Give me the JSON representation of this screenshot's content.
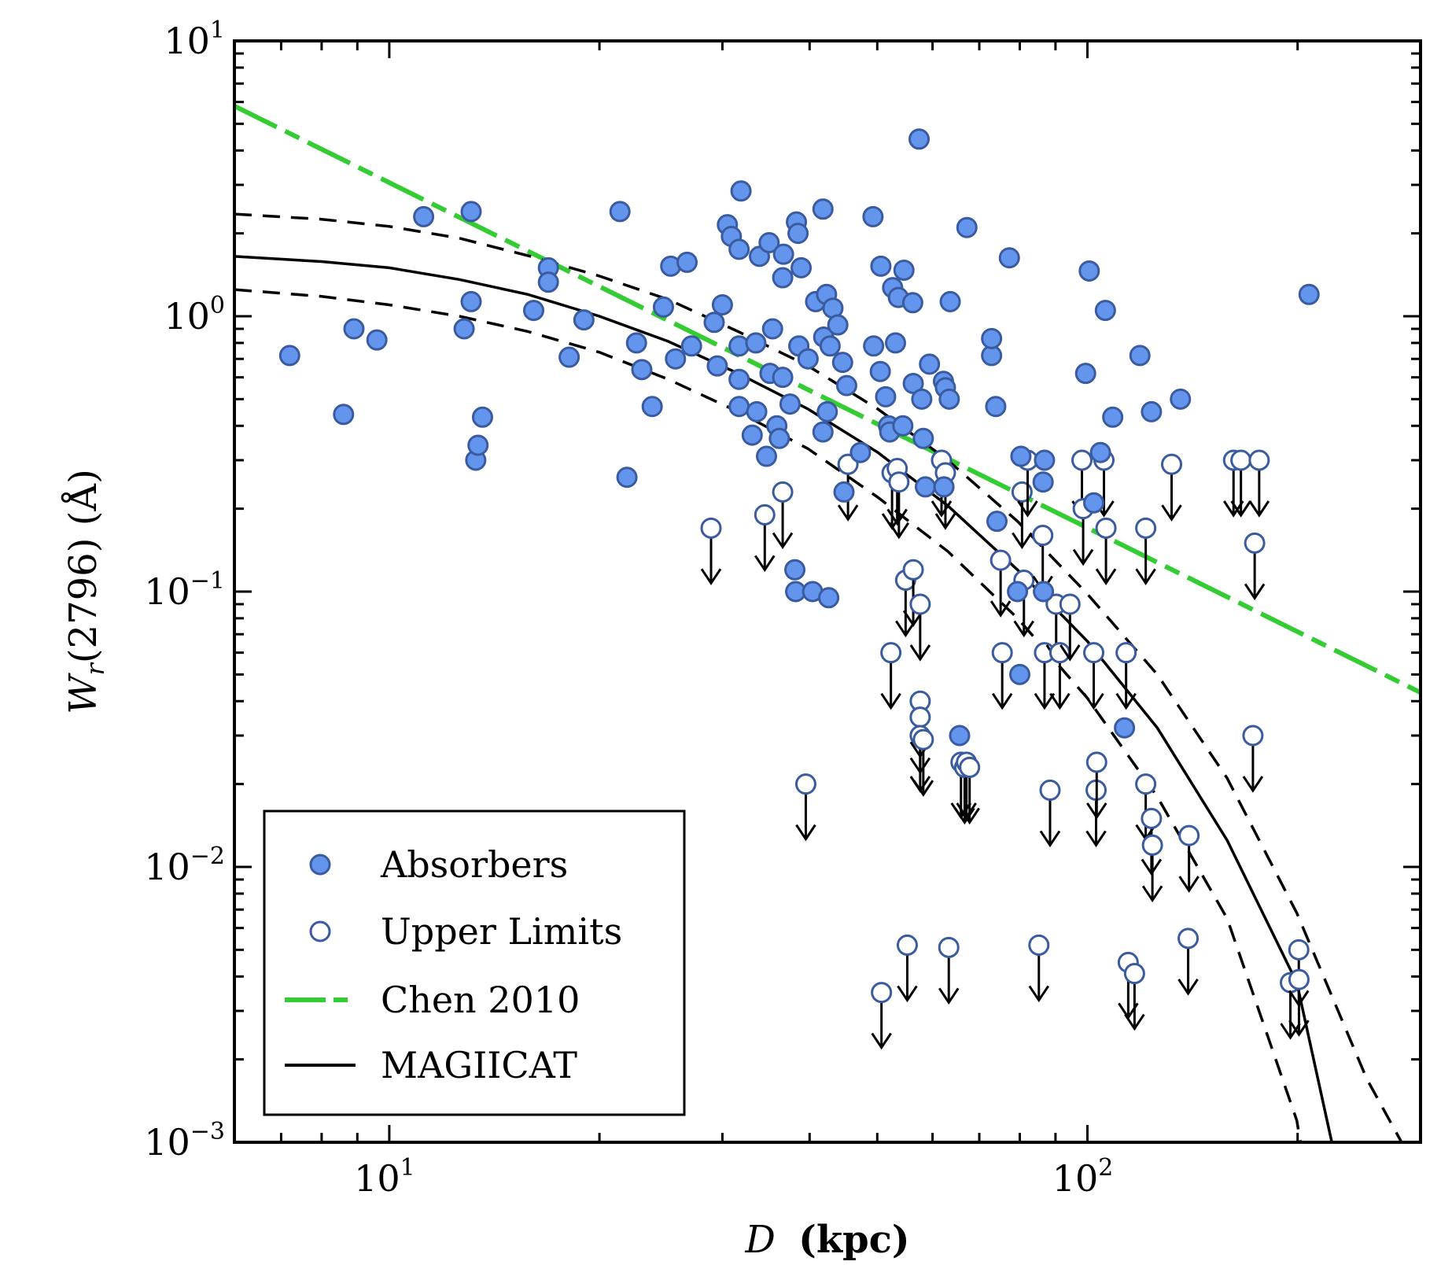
{
  "chart_data": {
    "type": "scatter",
    "xscale": "log",
    "yscale": "log",
    "xlim": [
      6,
      300
    ],
    "ylim": [
      0.001,
      10
    ],
    "xlabel": {
      "var": "D",
      "unit": "(kpc)"
    },
    "ylabel": {
      "var": "W",
      "sub": "r",
      "rest": "(2796) (Å)"
    },
    "x_ticks": [
      {
        "value": 10,
        "base": "10",
        "exp": "1"
      },
      {
        "value": 100,
        "base": "10",
        "exp": "2"
      }
    ],
    "y_ticks": [
      {
        "value": 10,
        "base": "10",
        "exp": "1"
      },
      {
        "value": 1,
        "base": "10",
        "exp": "0"
      },
      {
        "value": 0.1,
        "base": "10",
        "exp": "−1"
      },
      {
        "value": 0.01,
        "base": "10",
        "exp": "−2"
      },
      {
        "value": 0.001,
        "base": "10",
        "exp": "−3"
      }
    ],
    "legend": {
      "position": "lower-left",
      "entries": [
        "Absorbers",
        "Upper Limits",
        "Chen 2010",
        "MAGIICAT"
      ]
    },
    "colors": {
      "absorber_fill": "#6495ED",
      "marker_edge": "#3A5BA0",
      "chen_line": "#33CC33",
      "fit_line": "#000000"
    },
    "series": [
      {
        "name": "Absorbers",
        "kind": "filled-circle",
        "points": [
          [
            7.2,
            0.72
          ],
          [
            8.6,
            0.44
          ],
          [
            8.9,
            0.9
          ],
          [
            9.6,
            0.82
          ],
          [
            11.2,
            2.3
          ],
          [
            12.8,
            0.9
          ],
          [
            13.1,
            2.4
          ],
          [
            13.1,
            1.13
          ],
          [
            13.3,
            0.3
          ],
          [
            13.4,
            0.34
          ],
          [
            13.6,
            0.43
          ],
          [
            16.1,
            1.05
          ],
          [
            16.9,
            1.5
          ],
          [
            16.9,
            1.33
          ],
          [
            18.1,
            0.71
          ],
          [
            19.0,
            0.97
          ],
          [
            21.4,
            2.4
          ],
          [
            21.9,
            0.26
          ],
          [
            22.6,
            0.8
          ],
          [
            23.0,
            0.64
          ],
          [
            23.8,
            0.47
          ],
          [
            24.7,
            1.08
          ],
          [
            25.3,
            1.52
          ],
          [
            25.7,
            0.7
          ],
          [
            26.7,
            1.57
          ],
          [
            27.1,
            0.78
          ],
          [
            29.2,
            0.95
          ],
          [
            29.5,
            0.66
          ],
          [
            30.0,
            1.1
          ],
          [
            30.5,
            2.15
          ],
          [
            30.9,
            1.95
          ],
          [
            31.7,
            1.75
          ],
          [
            31.7,
            0.47
          ],
          [
            31.7,
            0.78
          ],
          [
            31.7,
            0.59
          ],
          [
            31.9,
            2.85
          ],
          [
            33.1,
            0.37
          ],
          [
            33.5,
            0.8
          ],
          [
            33.6,
            0.45
          ],
          [
            33.9,
            1.65
          ],
          [
            34.7,
            0.31
          ],
          [
            35.0,
            1.85
          ],
          [
            35.1,
            0.62
          ],
          [
            35.4,
            0.9
          ],
          [
            35.9,
            0.4
          ],
          [
            36.2,
            0.36
          ],
          [
            36.6,
            1.38
          ],
          [
            36.6,
            0.6
          ],
          [
            36.7,
            1.68
          ],
          [
            37.5,
            0.48
          ],
          [
            38.1,
            0.12
          ],
          [
            38.2,
            0.1
          ],
          [
            38.3,
            2.2
          ],
          [
            38.5,
            2.0
          ],
          [
            38.6,
            0.78
          ],
          [
            38.9,
            1.5
          ],
          [
            39.8,
            0.7
          ],
          [
            40.4,
            0.1
          ],
          [
            40.8,
            1.13
          ],
          [
            41.8,
            0.38
          ],
          [
            41.8,
            2.45
          ],
          [
            41.9,
            0.84
          ],
          [
            42.3,
            1.2
          ],
          [
            42.4,
            0.45
          ],
          [
            42.6,
            0.095
          ],
          [
            42.8,
            0.78
          ],
          [
            43.2,
            1.07
          ],
          [
            43.9,
            0.93
          ],
          [
            44.6,
            0.68
          ],
          [
            44.8,
            0.23
          ],
          [
            45.2,
            0.56
          ],
          [
            47.3,
            0.32
          ],
          [
            49.3,
            2.3
          ],
          [
            49.4,
            0.78
          ],
          [
            50.5,
            0.63
          ],
          [
            50.6,
            1.52
          ],
          [
            51.4,
            0.51
          ],
          [
            51.9,
            0.4
          ],
          [
            52.1,
            0.38
          ],
          [
            52.6,
            1.27
          ],
          [
            53.1,
            0.8
          ],
          [
            53.6,
            1.17
          ],
          [
            54.4,
            0.4
          ],
          [
            54.6,
            1.47
          ],
          [
            56.2,
            1.12
          ],
          [
            56.3,
            0.57
          ],
          [
            57.4,
            4.4
          ],
          [
            57.9,
            0.5
          ],
          [
            58.2,
            0.36
          ],
          [
            58.6,
            0.24
          ],
          [
            59.4,
            0.67
          ],
          [
            62.2,
            0.58
          ],
          [
            62.3,
            0.24
          ],
          [
            62.6,
            0.55
          ],
          [
            63.4,
            0.5
          ],
          [
            63.6,
            1.13
          ],
          [
            65.6,
            0.03
          ],
          [
            67.2,
            2.1
          ],
          [
            72.9,
            0.72
          ],
          [
            72.9,
            0.83
          ],
          [
            73.9,
            0.47
          ],
          [
            74.2,
            0.18
          ],
          [
            77.3,
            1.63
          ],
          [
            79.4,
            0.1
          ],
          [
            80.0,
            0.05
          ],
          [
            80.3,
            0.31
          ],
          [
            86.4,
            0.25
          ],
          [
            86.5,
            0.1
          ],
          [
            86.8,
            0.3
          ],
          [
            99.4,
            0.62
          ],
          [
            100.6,
            1.46
          ],
          [
            102.1,
            0.21
          ],
          [
            104.4,
            0.32
          ],
          [
            106.1,
            1.05
          ],
          [
            108.7,
            0.43
          ],
          [
            113.0,
            0.032
          ],
          [
            118.9,
            0.72
          ],
          [
            123.5,
            0.45
          ],
          [
            135.9,
            0.5
          ],
          [
            207.7,
            1.2
          ]
        ]
      },
      {
        "name": "Upper Limits",
        "kind": "open-circle-arrow",
        "points": [
          [
            28.9,
            0.17
          ],
          [
            34.5,
            0.19
          ],
          [
            36.6,
            0.23
          ],
          [
            39.5,
            0.02
          ],
          [
            45.4,
            0.29
          ],
          [
            50.7,
            0.0035
          ],
          [
            52.3,
            0.06
          ],
          [
            52.5,
            0.27
          ],
          [
            53.4,
            0.28
          ],
          [
            53.7,
            0.25
          ],
          [
            54.9,
            0.11
          ],
          [
            55.2,
            0.0052
          ],
          [
            56.3,
            0.12
          ],
          [
            57.6,
            0.09
          ],
          [
            57.6,
            0.04
          ],
          [
            57.6,
            0.035
          ],
          [
            57.6,
            0.03
          ],
          [
            58.2,
            0.029
          ],
          [
            61.8,
            0.3
          ],
          [
            62.6,
            0.27
          ],
          [
            63.3,
            0.0051
          ],
          [
            65.9,
            0.024
          ],
          [
            66.7,
            0.023
          ],
          [
            67.1,
            0.024
          ],
          [
            67.8,
            0.023
          ],
          [
            75.1,
            0.13
          ],
          [
            75.5,
            0.06
          ],
          [
            80.6,
            0.23
          ],
          [
            81.1,
            0.11
          ],
          [
            82.1,
            0.3
          ],
          [
            85.2,
            0.0052
          ],
          [
            86.3,
            0.16
          ],
          [
            86.8,
            0.06
          ],
          [
            88.4,
            0.019
          ],
          [
            90.2,
            0.09
          ],
          [
            91.3,
            0.06
          ],
          [
            94.4,
            0.09
          ],
          [
            98.2,
            0.3
          ],
          [
            98.6,
            0.2
          ],
          [
            102.1,
            0.06
          ],
          [
            102.9,
            0.019
          ],
          [
            103.1,
            0.024
          ],
          [
            105.6,
            0.3
          ],
          [
            106.3,
            0.17
          ],
          [
            113.6,
            0.06
          ],
          [
            114.4,
            0.0045
          ],
          [
            116.8,
            0.0041
          ],
          [
            121.2,
            0.17
          ],
          [
            121.2,
            0.02
          ],
          [
            123.5,
            0.015
          ],
          [
            123.9,
            0.012
          ],
          [
            132.0,
            0.29
          ],
          [
            139.4,
            0.0055
          ],
          [
            139.8,
            0.013
          ],
          [
            161.9,
            0.3
          ],
          [
            165.9,
            0.3
          ],
          [
            173.6,
            0.15
          ],
          [
            172.6,
            0.03
          ],
          [
            176.2,
            0.3
          ],
          [
            195.3,
            0.0038
          ],
          [
            200.8,
            0.005
          ],
          [
            200.9,
            0.0039
          ]
        ]
      },
      {
        "name": "Chen 2010",
        "kind": "dashed-line",
        "points": [
          [
            6,
            5.8
          ],
          [
            300,
            0.043
          ]
        ]
      },
      {
        "name": "MAGIICAT",
        "kind": "solid-line",
        "points": [
          [
            6,
            1.65
          ],
          [
            8,
            1.58
          ],
          [
            10,
            1.5
          ],
          [
            12.6,
            1.36
          ],
          [
            15.8,
            1.2
          ],
          [
            20,
            1.0
          ],
          [
            25.1,
            0.81
          ],
          [
            31.6,
            0.62
          ],
          [
            39.8,
            0.46
          ],
          [
            50.1,
            0.32
          ],
          [
            63.1,
            0.205
          ],
          [
            79.4,
            0.12
          ],
          [
            100,
            0.066
          ],
          [
            125.9,
            0.032
          ],
          [
            158.5,
            0.0125
          ],
          [
            199.5,
            0.0038
          ],
          [
            223.9,
            0.001
          ]
        ]
      },
      {
        "name": "MAGIICAT (upper bound)",
        "kind": "dashed-line",
        "points": [
          [
            6,
            2.35
          ],
          [
            8,
            2.25
          ],
          [
            10,
            2.12
          ],
          [
            12.6,
            1.92
          ],
          [
            15.8,
            1.66
          ],
          [
            20,
            1.4
          ],
          [
            25.1,
            1.15
          ],
          [
            31.6,
            0.88
          ],
          [
            39.8,
            0.66
          ],
          [
            50.1,
            0.46
          ],
          [
            63.1,
            0.3
          ],
          [
            79.4,
            0.18
          ],
          [
            100,
            0.098
          ],
          [
            125.9,
            0.05
          ],
          [
            158.5,
            0.021
          ],
          [
            199.5,
            0.0068
          ],
          [
            251.2,
            0.0017
          ],
          [
            281.8,
            0.001
          ]
        ]
      },
      {
        "name": "MAGIICAT (lower bound)",
        "kind": "dashed-line",
        "points": [
          [
            6,
            1.25
          ],
          [
            8,
            1.18
          ],
          [
            10,
            1.1
          ],
          [
            12.6,
            1.0
          ],
          [
            15.8,
            0.88
          ],
          [
            20,
            0.74
          ],
          [
            25.1,
            0.59
          ],
          [
            31.6,
            0.45
          ],
          [
            39.8,
            0.33
          ],
          [
            50.1,
            0.22
          ],
          [
            63.1,
            0.14
          ],
          [
            79.4,
            0.08
          ],
          [
            100,
            0.041
          ],
          [
            125.9,
            0.018
          ],
          [
            158.5,
            0.0065
          ],
          [
            199.5,
            0.0012
          ],
          [
            201.9,
            0.001
          ]
        ]
      }
    ]
  }
}
